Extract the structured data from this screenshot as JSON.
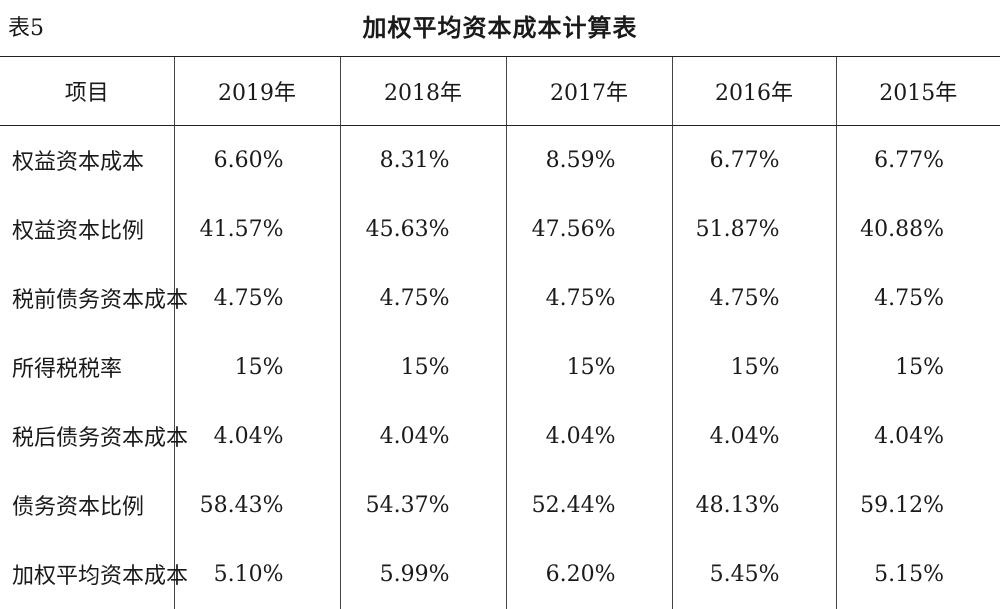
{
  "header": {
    "table_label": "表5",
    "title": "加权平均资本成本计算表"
  },
  "table": {
    "columns": [
      "项目",
      "2019年",
      "2018年",
      "2017年",
      "2016年",
      "2015年"
    ],
    "rows": [
      {
        "label": "权益资本成本",
        "values": [
          "6.60%",
          "8.31%",
          "8.59%",
          "6.77%",
          "6.77%"
        ]
      },
      {
        "label": "权益资本比例",
        "values": [
          "41.57%",
          "45.63%",
          "47.56%",
          "51.87%",
          "40.88%"
        ]
      },
      {
        "label": "税前债务资本成本",
        "values": [
          "4.75%",
          "4.75%",
          "4.75%",
          "4.75%",
          "4.75%"
        ]
      },
      {
        "label": "所得税税率",
        "values": [
          "15%",
          "15%",
          "15%",
          "15%",
          "15%"
        ]
      },
      {
        "label": "税后债务资本成本",
        "values": [
          "4.04%",
          "4.04%",
          "4.04%",
          "4.04%",
          "4.04%"
        ]
      },
      {
        "label": "债务资本比例",
        "values": [
          "58.43%",
          "54.37%",
          "52.44%",
          "48.13%",
          "59.12%"
        ]
      },
      {
        "label": "加权平均资本成本",
        "values": [
          "5.10%",
          "5.99%",
          "6.20%",
          "5.45%",
          "5.15%"
        ]
      }
    ]
  }
}
